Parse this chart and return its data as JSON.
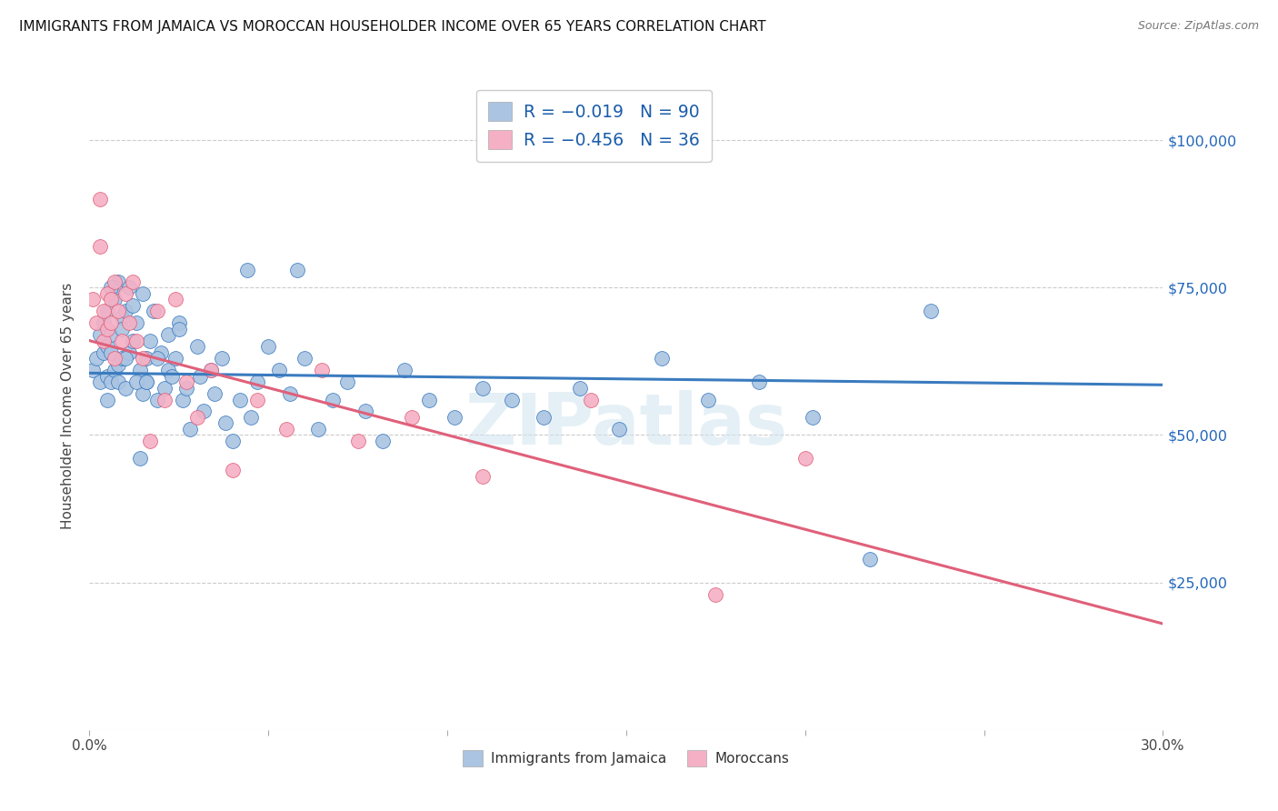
{
  "title": "IMMIGRANTS FROM JAMAICA VS MOROCCAN HOUSEHOLDER INCOME OVER 65 YEARS CORRELATION CHART",
  "source": "Source: ZipAtlas.com",
  "ylabel": "Householder Income Over 65 years",
  "legend_label1": "R = −0.019   N = 90",
  "legend_label2": "R = −0.456   N = 36",
  "legend_bottom1": "Immigrants from Jamaica",
  "legend_bottom2": "Moroccans",
  "jamaica_color": "#aac4e2",
  "morocco_color": "#f5b0c5",
  "jamaica_line_color": "#3a7bbf",
  "morocco_line_color": "#e0607a",
  "background_color": "#ffffff",
  "grid_color": "#cccccc",
  "jamaica_scatter_x": [
    0.001,
    0.002,
    0.003,
    0.003,
    0.004,
    0.004,
    0.005,
    0.005,
    0.005,
    0.005,
    0.006,
    0.006,
    0.006,
    0.007,
    0.007,
    0.008,
    0.008,
    0.008,
    0.009,
    0.009,
    0.009,
    0.01,
    0.01,
    0.011,
    0.011,
    0.012,
    0.012,
    0.013,
    0.014,
    0.014,
    0.015,
    0.015,
    0.016,
    0.016,
    0.017,
    0.018,
    0.019,
    0.02,
    0.021,
    0.022,
    0.022,
    0.023,
    0.024,
    0.025,
    0.026,
    0.027,
    0.028,
    0.03,
    0.032,
    0.034,
    0.035,
    0.037,
    0.038,
    0.04,
    0.042,
    0.045,
    0.047,
    0.05,
    0.053,
    0.056,
    0.06,
    0.064,
    0.068,
    0.072,
    0.077,
    0.082,
    0.088,
    0.095,
    0.102,
    0.11,
    0.118,
    0.127,
    0.137,
    0.148,
    0.16,
    0.173,
    0.187,
    0.202,
    0.218,
    0.235,
    0.058,
    0.044,
    0.031,
    0.019,
    0.013,
    0.007,
    0.006,
    0.01,
    0.016,
    0.025
  ],
  "jamaica_scatter_y": [
    61000,
    63000,
    59000,
    67000,
    64000,
    69000,
    60000,
    65000,
    71000,
    56000,
    64000,
    59000,
    67000,
    73000,
    61000,
    76000,
    62000,
    59000,
    70000,
    68000,
    63000,
    71000,
    58000,
    75000,
    64000,
    72000,
    66000,
    69000,
    46000,
    61000,
    74000,
    57000,
    63000,
    59000,
    66000,
    71000,
    56000,
    64000,
    58000,
    61000,
    67000,
    60000,
    63000,
    69000,
    56000,
    58000,
    51000,
    65000,
    54000,
    61000,
    57000,
    63000,
    52000,
    49000,
    56000,
    53000,
    59000,
    65000,
    61000,
    57000,
    63000,
    51000,
    56000,
    59000,
    54000,
    49000,
    61000,
    56000,
    53000,
    58000,
    56000,
    53000,
    58000,
    51000,
    63000,
    56000,
    59000,
    53000,
    29000,
    71000,
    78000,
    78000,
    60000,
    63000,
    59000,
    75000,
    75000,
    63000,
    59000,
    68000
  ],
  "morocco_scatter_x": [
    0.001,
    0.002,
    0.003,
    0.004,
    0.004,
    0.005,
    0.005,
    0.006,
    0.006,
    0.007,
    0.007,
    0.008,
    0.009,
    0.01,
    0.011,
    0.012,
    0.013,
    0.015,
    0.017,
    0.019,
    0.021,
    0.024,
    0.027,
    0.03,
    0.034,
    0.04,
    0.047,
    0.055,
    0.065,
    0.075,
    0.09,
    0.11,
    0.14,
    0.175,
    0.2,
    0.003
  ],
  "morocco_scatter_y": [
    73000,
    69000,
    82000,
    71000,
    66000,
    74000,
    68000,
    73000,
    69000,
    76000,
    63000,
    71000,
    66000,
    74000,
    69000,
    76000,
    66000,
    63000,
    49000,
    71000,
    56000,
    73000,
    59000,
    53000,
    61000,
    44000,
    56000,
    51000,
    61000,
    49000,
    53000,
    43000,
    56000,
    23000,
    46000,
    90000
  ],
  "xlim": [
    0.0,
    0.3
  ],
  "ylim": [
    0,
    110000
  ],
  "watermark": "ZIPatlas",
  "jamaica_line_y": [
    60500,
    58500
  ],
  "morocco_line_y": [
    66000,
    18000
  ]
}
